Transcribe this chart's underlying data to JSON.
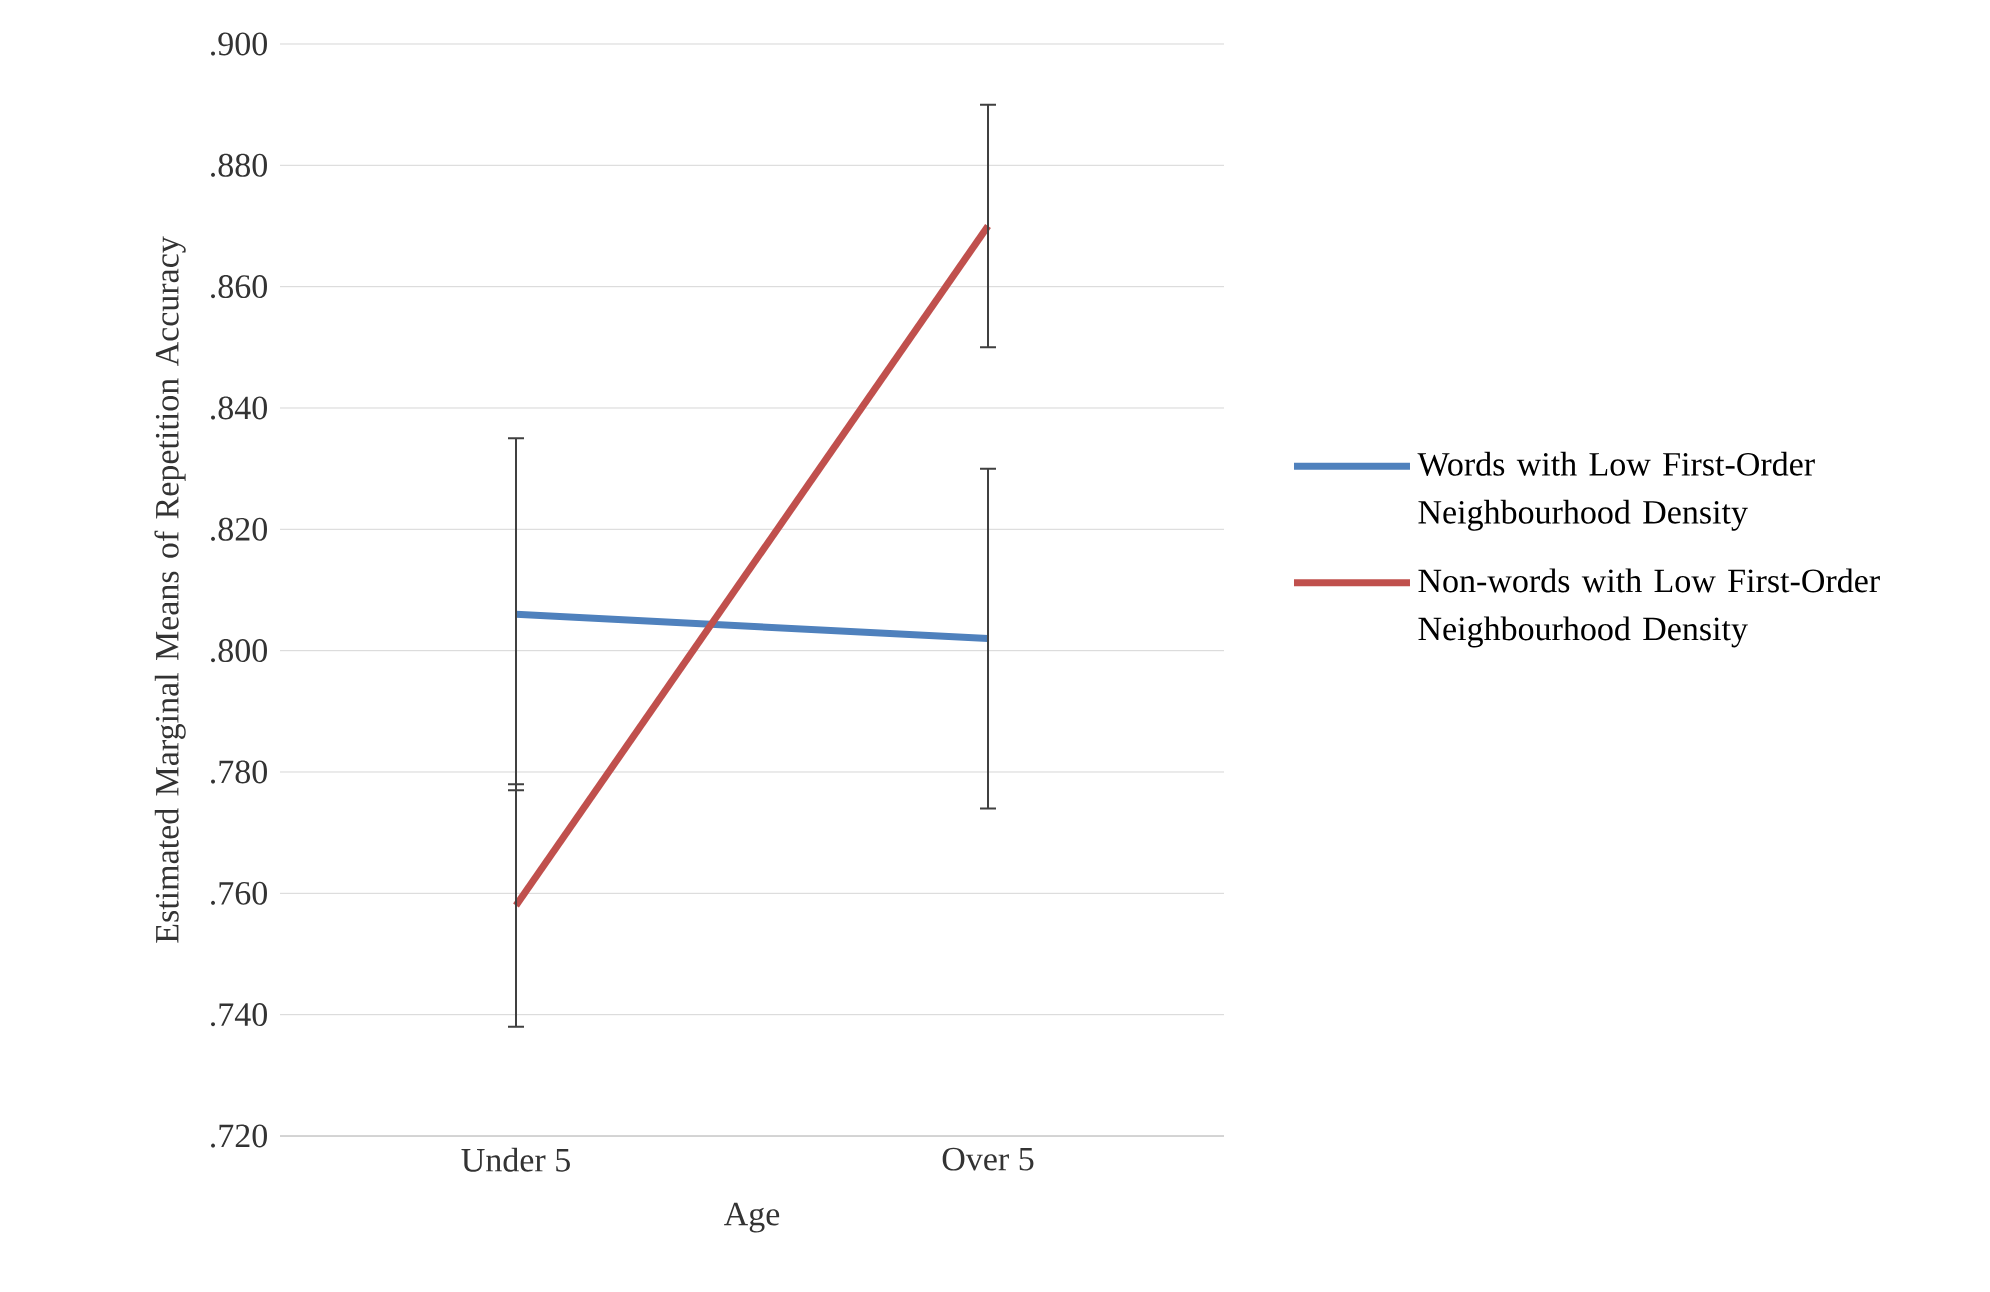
{
  "chart_data": {
    "type": "line",
    "xlabel": "Age",
    "ylabel": "Estimated Marginal Means of Repetition Accuracy",
    "categories": [
      "Under 5",
      "Over 5"
    ],
    "series": [
      {
        "name": "Words with Low First-Order Neighbourhood Density",
        "color": "#4f81bd",
        "values": [
          0.806,
          0.802
        ],
        "errors": [
          0.029,
          0.028
        ]
      },
      {
        "name": "Non-words with Low First-Order Neighbourhood Density",
        "color": "#c0504d",
        "values": [
          0.758,
          0.87
        ],
        "errors": [
          0.02,
          0.02
        ]
      }
    ],
    "ylim": [
      0.72,
      0.9
    ],
    "yticks": [
      {
        "value": 0.72,
        "label": ".720"
      },
      {
        "value": 0.74,
        "label": ".740"
      },
      {
        "value": 0.76,
        "label": ".760"
      },
      {
        "value": 0.78,
        "label": ".780"
      },
      {
        "value": 0.8,
        "label": ".800"
      },
      {
        "value": 0.82,
        "label": ".820"
      },
      {
        "value": 0.84,
        "label": ".840"
      },
      {
        "value": 0.86,
        "label": ".860"
      },
      {
        "value": 0.88,
        "label": ".880"
      },
      {
        "value": 0.9,
        "label": ".900"
      }
    ],
    "grid": "y",
    "legend": "right",
    "marker": "none",
    "line_style": "solid"
  }
}
